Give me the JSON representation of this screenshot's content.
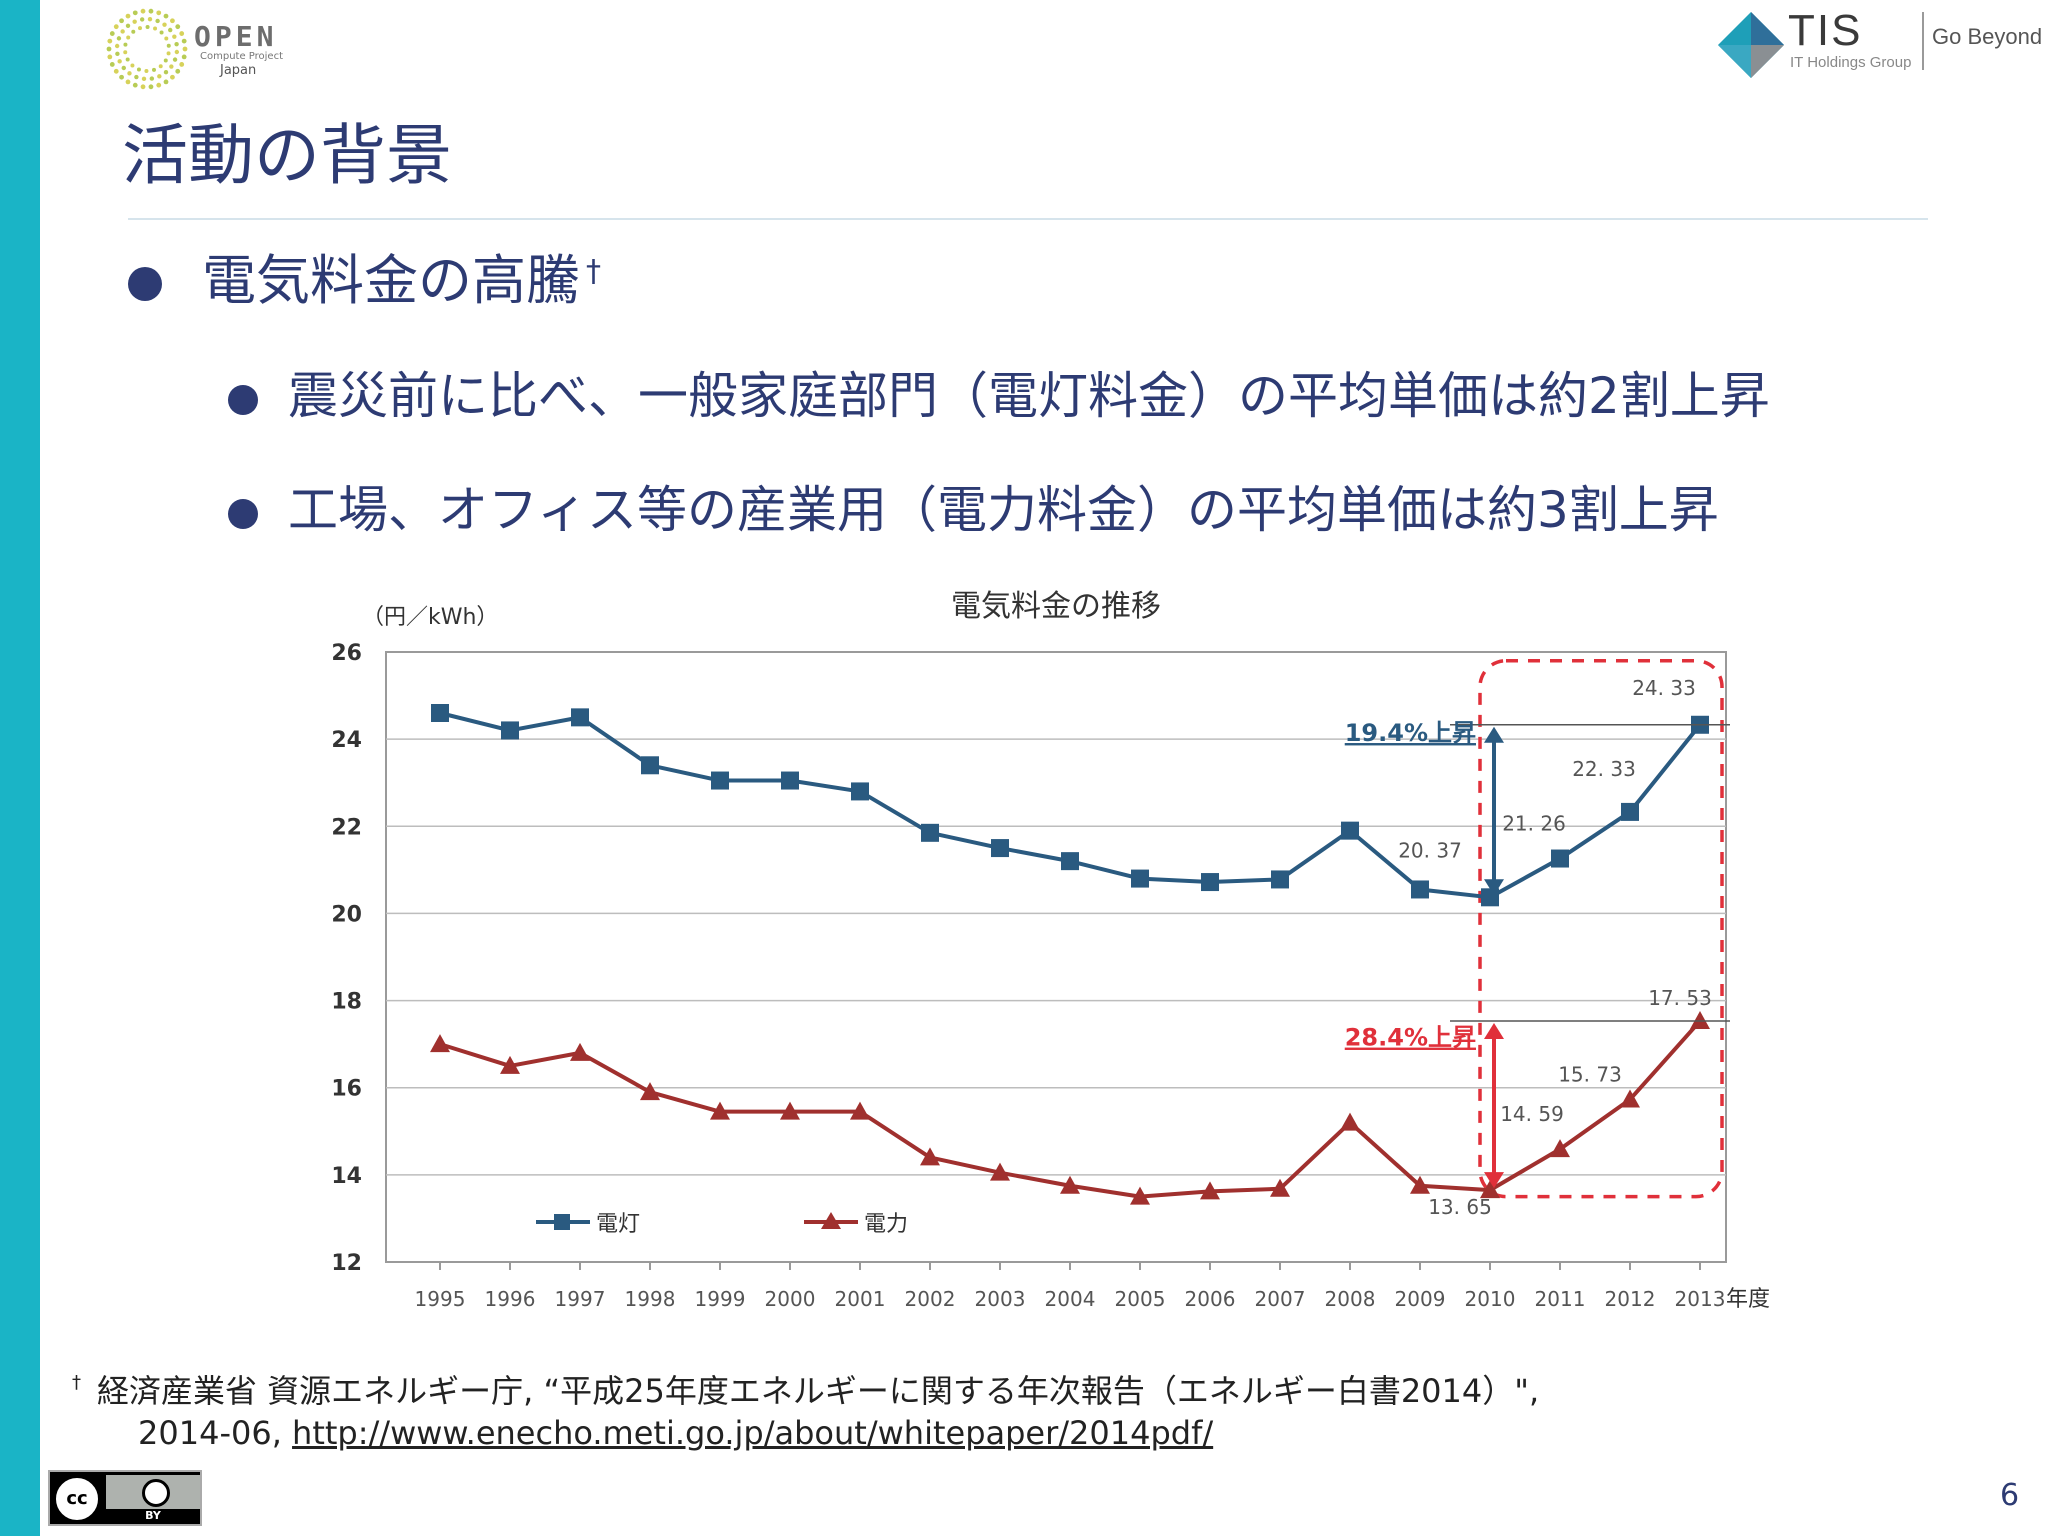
{
  "logos": {
    "ocp": {
      "word": "OPEN",
      "sub": "Compute Project",
      "region": "Japan"
    },
    "tis": {
      "word": "TIS",
      "group": "IT Holdings Group",
      "tagline": "Go Beyond"
    }
  },
  "colors": {
    "accent_bar": "#1ab4c6",
    "title": "#2d3b73",
    "series_dento": "#2a5a80",
    "series_denryoku": "#a0302e",
    "highlight": "#e0303a"
  },
  "slide": {
    "title": "活動の背景",
    "bullet_main": "電気料金の高騰",
    "bullet_main_mark": "†",
    "bullet_sub1": "震災前に比べ、一般家庭部門（電灯料金）の平均単価は約2割上昇",
    "bullet_sub2": "工場、オフィス等の産業用（電力料金）の平均単価は約3割上昇",
    "page_number": "6"
  },
  "footnote": {
    "mark": "†",
    "line1": "経済産業省 資源エネルギー庁, “平成25年度エネルギーに関する年次報告（エネルギー白書2014）\",",
    "line2_prefix": "2014-06, ",
    "url": "http://www.enecho.meti.go.jp/about/whitepaper/2014pdf/"
  },
  "license": {
    "c_symbol": "cc",
    "by": "BY"
  },
  "chart_data": {
    "type": "line",
    "title": "電気料金の推移",
    "ylabel": "（円／kWh）",
    "xlabel": "年度",
    "ylim": [
      12,
      26
    ],
    "yticks": [
      12,
      14,
      16,
      18,
      20,
      22,
      24,
      26
    ],
    "grid": true,
    "legend_position": "bottom-left",
    "x": [
      "1995",
      "1996",
      "1997",
      "1998",
      "1999",
      "2000",
      "2001",
      "2002",
      "2003",
      "2004",
      "2005",
      "2006",
      "2007",
      "2008",
      "2009",
      "2010",
      "2011",
      "2012",
      "2013"
    ],
    "series": [
      {
        "name": "電灯",
        "marker": "square",
        "values": [
          24.6,
          24.2,
          24.5,
          23.4,
          23.05,
          23.05,
          22.8,
          21.85,
          21.5,
          21.2,
          20.8,
          20.72,
          20.78,
          21.9,
          20.55,
          20.37,
          21.26,
          22.33,
          24.33
        ]
      },
      {
        "name": "電力",
        "marker": "triangle",
        "values": [
          17.0,
          16.5,
          16.8,
          15.9,
          15.45,
          15.45,
          15.45,
          14.4,
          14.05,
          13.75,
          13.5,
          13.62,
          13.68,
          15.2,
          13.75,
          13.65,
          14.59,
          15.73,
          17.53
        ]
      }
    ],
    "data_labels": [
      {
        "series": 0,
        "x": "2010",
        "text": "20. 37"
      },
      {
        "series": 0,
        "x": "2011",
        "text": "21. 26"
      },
      {
        "series": 0,
        "x": "2012",
        "text": "22. 33"
      },
      {
        "series": 0,
        "x": "2013",
        "text": "24. 33"
      },
      {
        "series": 1,
        "x": "2010",
        "text": "13. 65"
      },
      {
        "series": 1,
        "x": "2011",
        "text": "14. 59"
      },
      {
        "series": 1,
        "x": "2012",
        "text": "15. 73"
      },
      {
        "series": 1,
        "x": "2013",
        "text": "17. 53"
      }
    ],
    "annotations": [
      {
        "series": 0,
        "from_x": "2010",
        "to_x": "2013",
        "text": "19.4%上昇"
      },
      {
        "series": 1,
        "from_x": "2010",
        "to_x": "2013",
        "text": "28.4%上昇"
      }
    ],
    "highlight_range": [
      "2010",
      "2013"
    ]
  }
}
